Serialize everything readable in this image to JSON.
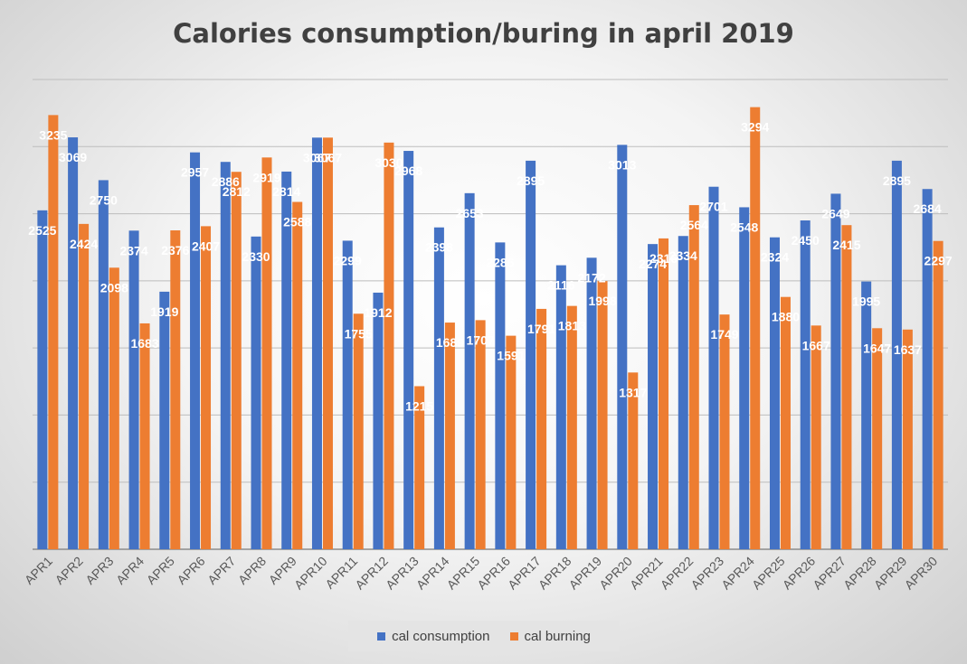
{
  "chart_data": {
    "type": "bar",
    "title": "Calories consumption/buring in april 2019",
    "xlabel": "",
    "ylabel": "",
    "ylim": [
      0,
      3500
    ],
    "grid": true,
    "legend_position": "bottom",
    "categories": [
      "APR1",
      "APR2",
      "APR3",
      "APR4",
      "APR5",
      "APR6",
      "APR7",
      "APR8",
      "APR9",
      "APR10",
      "APR11",
      "APR12",
      "APR13",
      "APR14",
      "APR15",
      "APR16",
      "APR17",
      "APR18",
      "APR19",
      "APR20",
      "APR21",
      "APR22",
      "APR23",
      "APR24",
      "APR25",
      "APR26",
      "APR27",
      "APR28",
      "APR29",
      "APR30"
    ],
    "series": [
      {
        "name": "cal consumption",
        "color": "#4472c4",
        "values": [
          2525,
          3069,
          2750,
          2374,
          1919,
          2957,
          2886,
          2330,
          2814,
          3067,
          2299,
          1912,
          2968,
          2398,
          2653,
          2286,
          2895,
          2116,
          2172,
          3013,
          2274,
          2334,
          2701,
          2548,
          2324,
          2450,
          2649,
          1995,
          2895,
          2684
        ]
      },
      {
        "name": "cal burning",
        "color": "#ed7d31",
        "values": [
          3235,
          2424,
          2098,
          1683,
          2376,
          2407,
          2812,
          2919,
          2588,
          3067,
          1755,
          3030,
          1215,
          1689,
          1707,
          1591,
          1791,
          1813,
          1998,
          1317,
          2316,
          2564,
          1749,
          3294,
          1880,
          1667,
          2415,
          1647,
          1637,
          2297
        ]
      }
    ]
  }
}
